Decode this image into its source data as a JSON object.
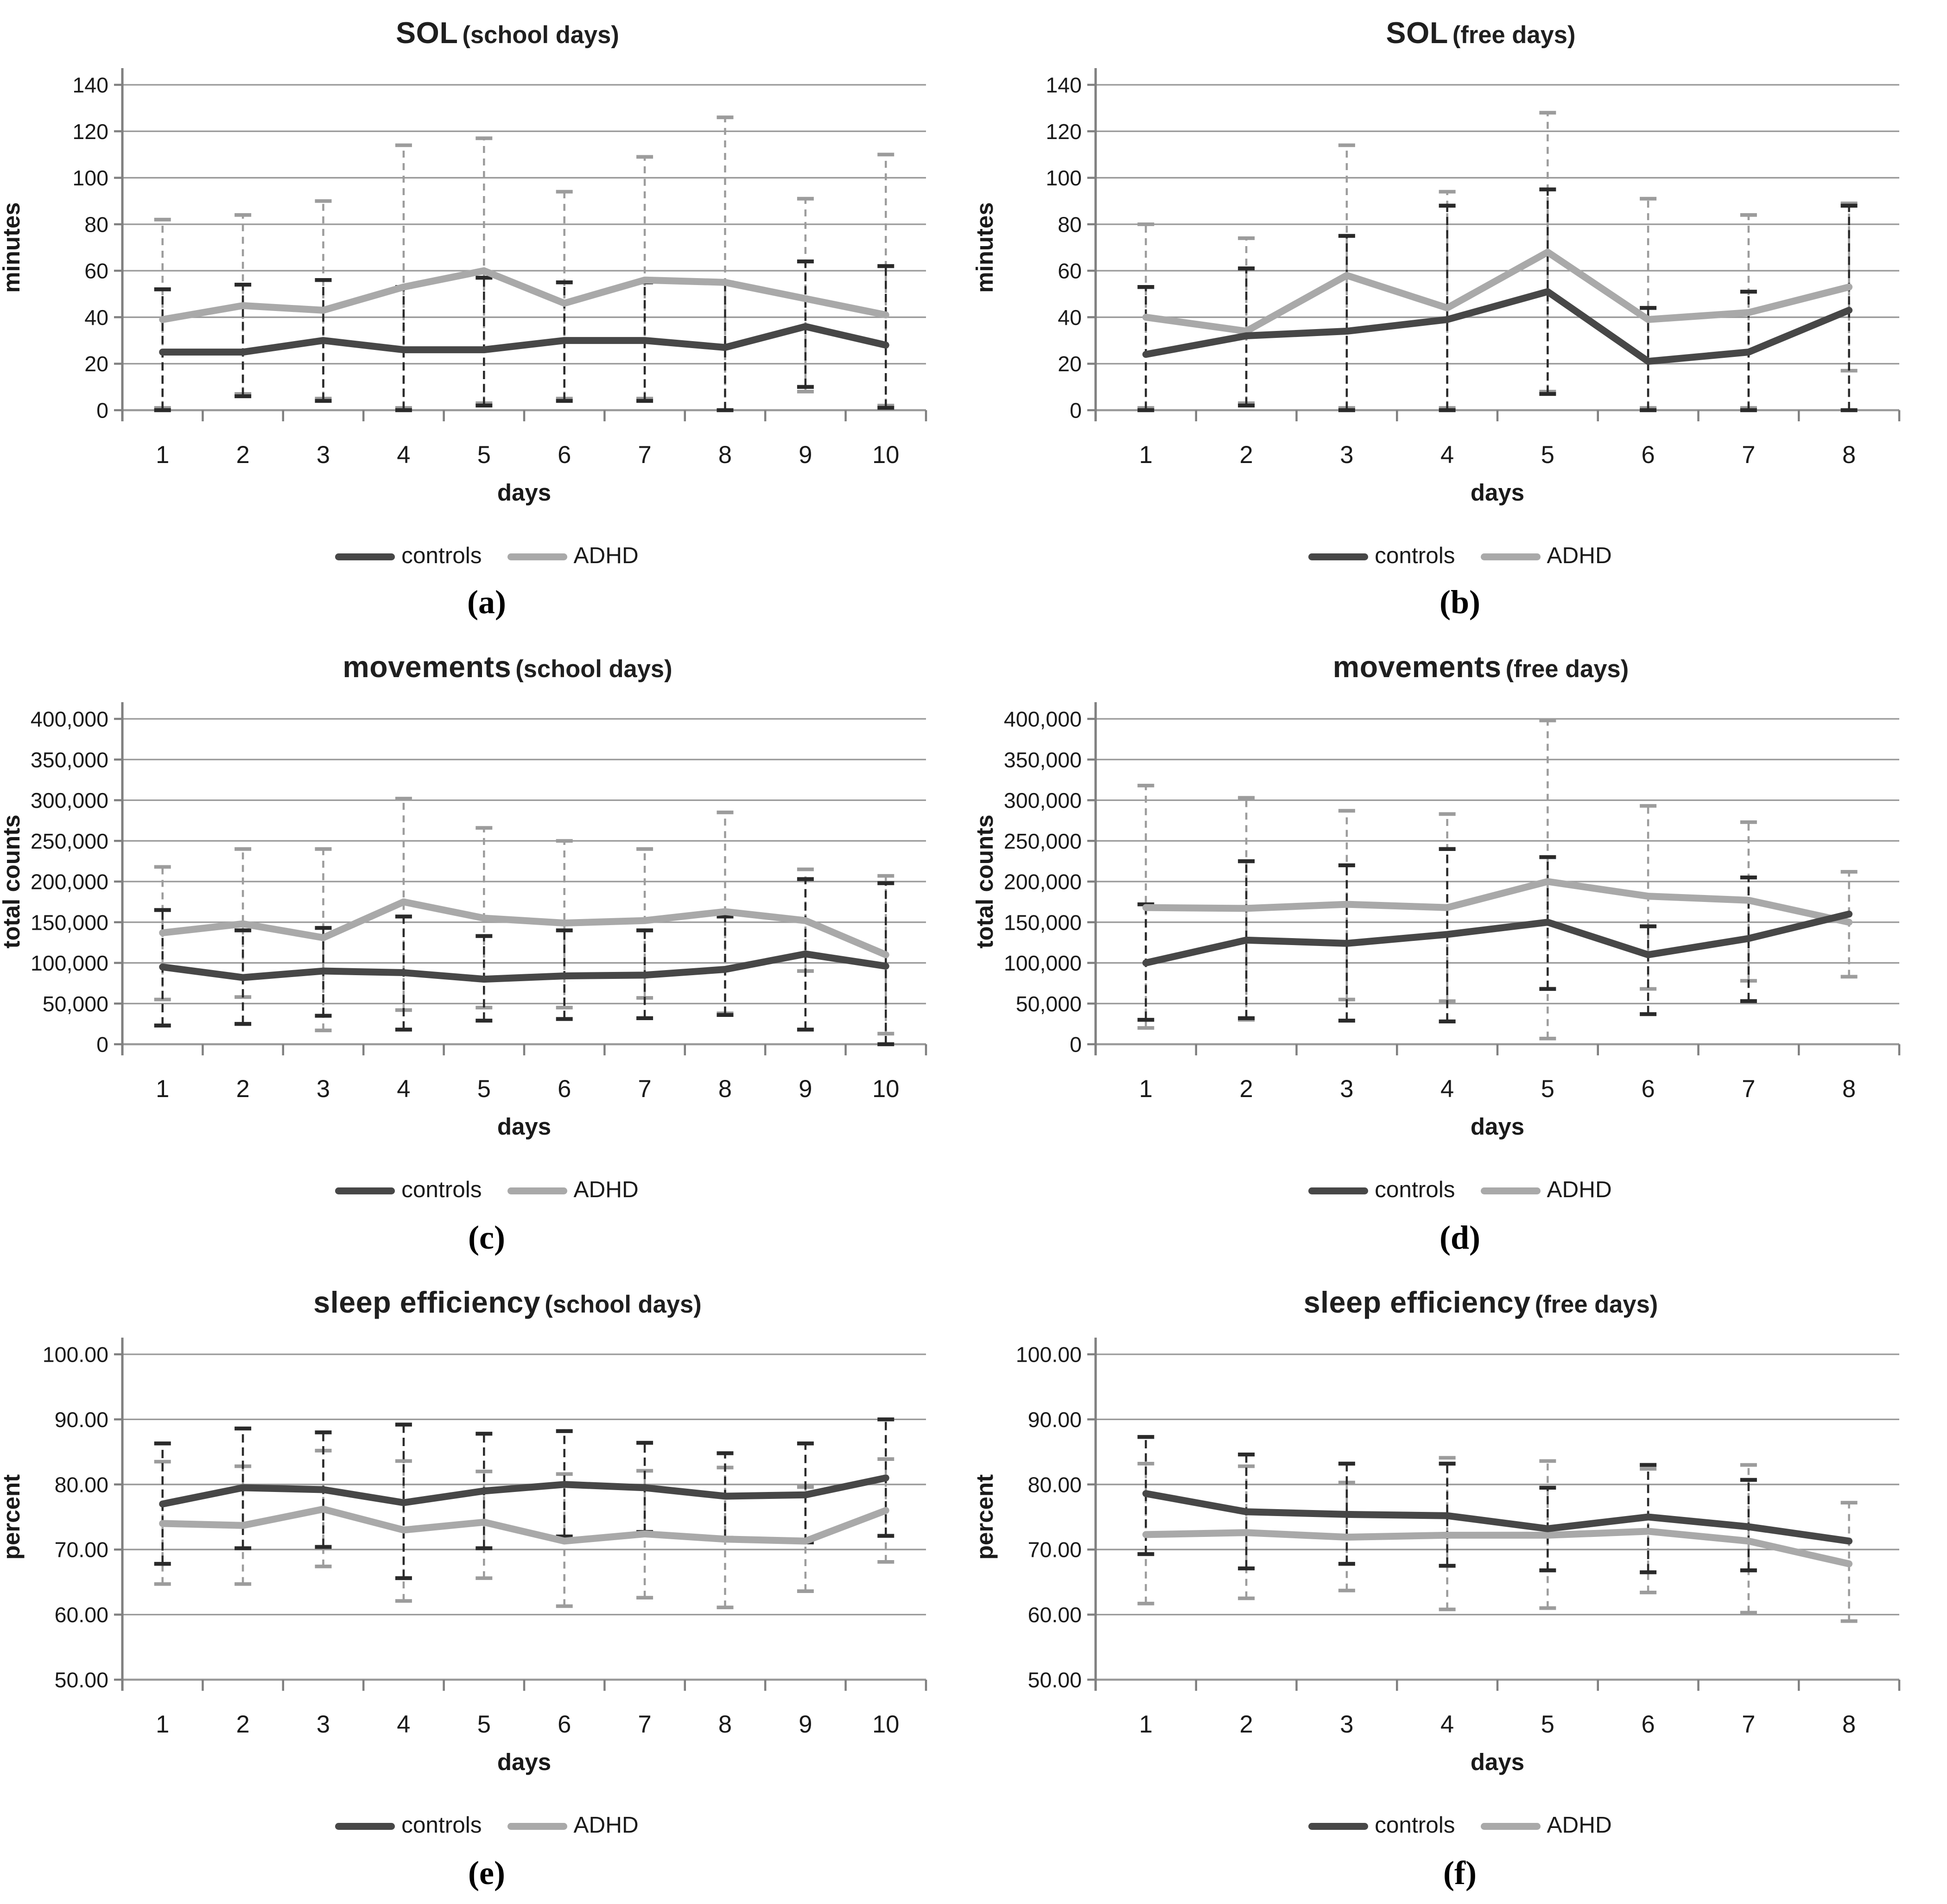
{
  "figure": {
    "background": "#ffffff"
  },
  "legend": {
    "controls": "controls",
    "adhd": "ADHD"
  },
  "colors": {
    "controls_line": "#474747",
    "adhd_line": "#a9a9a9",
    "controls_err": "#2a2a2a",
    "adhd_err": "#9c9c9c",
    "grid": "#9a9a9a",
    "axis": "#808080",
    "text": "#1a1a1a"
  },
  "chart_data": [
    {
      "type": "line",
      "panel": "a",
      "caption": "(a)",
      "title_main": "SOL",
      "title_sub": "(school days)",
      "xlabel": "days",
      "ylabel": "minutes",
      "ylim": [
        0,
        140
      ],
      "yticks": [
        0,
        20,
        40,
        60,
        80,
        100,
        120,
        140
      ],
      "ytick_labels": [
        "0",
        "20",
        "40",
        "60",
        "80",
        "100",
        "120",
        "140"
      ],
      "categories": [
        "1",
        "2",
        "3",
        "4",
        "5",
        "6",
        "7",
        "8",
        "9",
        "10"
      ],
      "grid": "on",
      "legend_position": "bottom",
      "series": [
        {
          "name": "controls",
          "values": [
            25,
            25,
            30,
            26,
            26,
            30,
            30,
            27,
            36,
            28
          ],
          "err_upper": [
            52,
            54,
            56,
            53,
            57,
            55,
            55,
            55,
            64,
            62
          ],
          "err_lower": [
            0,
            6,
            4,
            0,
            2,
            4,
            4,
            0,
            10,
            1
          ]
        },
        {
          "name": "ADHD",
          "values": [
            39,
            45,
            43,
            53,
            60,
            46,
            56,
            55,
            48,
            41
          ],
          "err_upper": [
            82,
            84,
            90,
            114,
            117,
            94,
            109,
            126,
            91,
            110
          ],
          "err_lower": [
            1,
            7,
            5,
            1,
            3,
            5,
            5,
            0,
            8,
            2
          ]
        }
      ]
    },
    {
      "type": "line",
      "panel": "b",
      "caption": "(b)",
      "title_main": "SOL",
      "title_sub": "(free days)",
      "xlabel": "days",
      "ylabel": "minutes",
      "ylim": [
        0,
        140
      ],
      "yticks": [
        0,
        20,
        40,
        60,
        80,
        100,
        120,
        140
      ],
      "ytick_labels": [
        "0",
        "20",
        "40",
        "60",
        "80",
        "100",
        "120",
        "140"
      ],
      "categories": [
        "1",
        "2",
        "3",
        "4",
        "5",
        "6",
        "7",
        "8"
      ],
      "grid": "on",
      "legend_position": "bottom",
      "series": [
        {
          "name": "controls",
          "values": [
            24,
            32,
            34,
            39,
            51,
            21,
            25,
            43
          ],
          "err_upper": [
            53,
            61,
            75,
            88,
            95,
            44,
            51,
            88
          ],
          "err_lower": [
            0,
            2,
            0,
            0,
            7,
            0,
            0,
            0
          ]
        },
        {
          "name": "ADHD",
          "values": [
            40,
            34,
            58,
            44,
            68,
            39,
            42,
            53
          ],
          "err_upper": [
            80,
            74,
            114,
            94,
            128,
            91,
            84,
            89
          ],
          "err_lower": [
            1,
            3,
            1,
            1,
            8,
            1,
            1,
            17
          ]
        }
      ]
    },
    {
      "type": "line",
      "panel": "c",
      "caption": "(c)",
      "title_main": "movements",
      "title_sub": "(school days)",
      "xlabel": "days",
      "ylabel": "total counts",
      "ylim": [
        0,
        400000
      ],
      "yticks": [
        0,
        50000,
        100000,
        150000,
        200000,
        250000,
        300000,
        350000,
        400000
      ],
      "ytick_labels": [
        "0",
        "50,000",
        "100,000",
        "150,000",
        "200,000",
        "250,000",
        "300,000",
        "350,000",
        "400,000"
      ],
      "categories": [
        "1",
        "2",
        "3",
        "4",
        "5",
        "6",
        "7",
        "8",
        "9",
        "10"
      ],
      "grid": "on",
      "legend_position": "bottom",
      "series": [
        {
          "name": "controls",
          "values": [
            95000,
            82000,
            90000,
            88000,
            80000,
            84000,
            85000,
            92000,
            111000,
            96000
          ],
          "err_upper": [
            165000,
            140000,
            143000,
            157000,
            133000,
            140000,
            140000,
            157000,
            203000,
            198000
          ],
          "err_lower": [
            23000,
            25000,
            35000,
            18000,
            29000,
            31000,
            32000,
            36000,
            18000,
            0
          ]
        },
        {
          "name": "ADHD",
          "values": [
            137000,
            148000,
            131000,
            175000,
            155000,
            149000,
            152000,
            163000,
            152000,
            110000
          ],
          "err_upper": [
            218000,
            240000,
            240000,
            302000,
            266000,
            250000,
            240000,
            285000,
            215000,
            207000
          ],
          "err_lower": [
            55000,
            58000,
            17000,
            42000,
            45000,
            45000,
            57000,
            38000,
            90000,
            13000
          ]
        }
      ]
    },
    {
      "type": "line",
      "panel": "d",
      "caption": "(d)",
      "title_main": "movements",
      "title_sub": "(free days)",
      "xlabel": "days",
      "ylabel": "total counts",
      "ylim": [
        0,
        400000
      ],
      "yticks": [
        0,
        50000,
        100000,
        150000,
        200000,
        250000,
        300000,
        350000,
        400000
      ],
      "ytick_labels": [
        "0",
        "50,000",
        "100,000",
        "150,000",
        "200,000",
        "250,000",
        "300,000",
        "350,000",
        "400,000"
      ],
      "categories": [
        "1",
        "2",
        "3",
        "4",
        "5",
        "6",
        "7",
        "8"
      ],
      "grid": "on",
      "legend_position": "bottom",
      "series": [
        {
          "name": "controls",
          "values": [
            100000,
            128000,
            124000,
            135000,
            150000,
            110000,
            130000,
            160000
          ],
          "err_upper": [
            172000,
            225000,
            220000,
            240000,
            230000,
            145000,
            205000,
            null
          ],
          "err_lower": [
            30000,
            32000,
            29000,
            28000,
            68000,
            37000,
            53000,
            null
          ]
        },
        {
          "name": "ADHD",
          "values": [
            168000,
            167000,
            172000,
            168000,
            200000,
            182000,
            177000,
            150000
          ],
          "err_upper": [
            318000,
            303000,
            287000,
            283000,
            398000,
            293000,
            273000,
            212000
          ],
          "err_lower": [
            20000,
            30000,
            55000,
            53000,
            7000,
            68000,
            78000,
            83000
          ]
        }
      ]
    },
    {
      "type": "line",
      "panel": "e",
      "caption": "(e)",
      "title_main": "sleep efficiency",
      "title_sub": "(school days)",
      "xlabel": "days",
      "ylabel": "percent",
      "ylim": [
        50,
        100
      ],
      "yticks": [
        50,
        60,
        70,
        80,
        90,
        100
      ],
      "ytick_labels": [
        "50.00",
        "60.00",
        "70.00",
        "80.00",
        "90.00",
        "100.00"
      ],
      "categories": [
        "1",
        "2",
        "3",
        "4",
        "5",
        "6",
        "7",
        "8",
        "9",
        "10"
      ],
      "grid": "on",
      "legend_position": "bottom",
      "series": [
        {
          "name": "controls",
          "values": [
            77,
            79.5,
            79.2,
            77.2,
            79,
            80,
            79.5,
            78.2,
            78.4,
            81
          ],
          "err_upper": [
            86.3,
            88.6,
            88,
            89.2,
            87.8,
            88.2,
            86.4,
            84.8,
            86.3,
            90
          ],
          "err_lower": [
            67.8,
            70.2,
            70.4,
            65.6,
            70.2,
            72,
            72.7,
            71.8,
            71.1,
            72.1
          ]
        },
        {
          "name": "ADHD",
          "values": [
            74,
            73.7,
            76.2,
            73,
            74.2,
            71.3,
            72.4,
            71.6,
            71.3,
            76
          ],
          "err_upper": [
            83.5,
            82.8,
            85.2,
            83.6,
            82,
            81.6,
            82.1,
            82.6,
            79.6,
            83.9
          ],
          "err_lower": [
            64.7,
            64.7,
            67.4,
            62.1,
            65.6,
            61.3,
            62.6,
            61.1,
            63.6,
            68.1
          ]
        }
      ]
    },
    {
      "type": "line",
      "panel": "f",
      "caption": "(f)",
      "title_main": "sleep efficiency",
      "title_sub": "(free days)",
      "xlabel": "days",
      "ylabel": "percent",
      "ylim": [
        50,
        100
      ],
      "yticks": [
        50,
        60,
        70,
        80,
        90,
        100
      ],
      "ytick_labels": [
        "50.00",
        "60.00",
        "70.00",
        "80.00",
        "90.00",
        "100.00"
      ],
      "categories": [
        "1",
        "2",
        "3",
        "4",
        "5",
        "6",
        "7",
        "8"
      ],
      "grid": "on",
      "legend_position": "bottom",
      "series": [
        {
          "name": "controls",
          "values": [
            78.6,
            75.8,
            75.4,
            75.2,
            73.2,
            75,
            73.5,
            71.3
          ],
          "err_upper": [
            87.3,
            84.6,
            83.2,
            83.2,
            79.5,
            83,
            80.7,
            null
          ],
          "err_lower": [
            69.3,
            67.1,
            67.8,
            67.5,
            66.8,
            66.5,
            66.8,
            null
          ]
        },
        {
          "name": "ADHD",
          "values": [
            72.3,
            72.6,
            71.9,
            72.2,
            72.2,
            72.8,
            71.3,
            67.8
          ],
          "err_upper": [
            83.2,
            82.8,
            80.3,
            84.1,
            83.6,
            82.4,
            83,
            77.2
          ],
          "err_lower": [
            61.7,
            62.5,
            63.7,
            60.8,
            61,
            63.4,
            60.3,
            59
          ]
        }
      ]
    }
  ]
}
